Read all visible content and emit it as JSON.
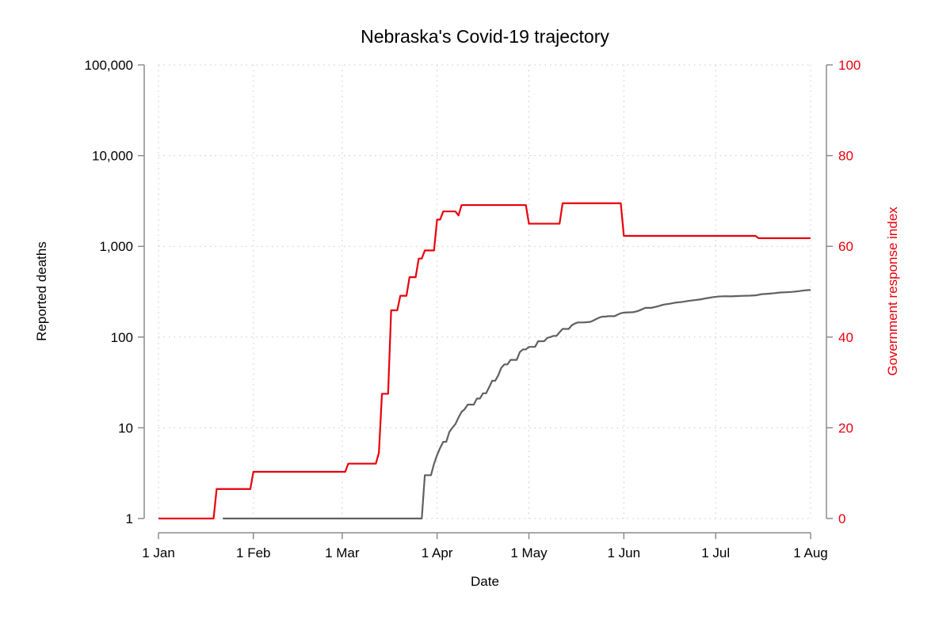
{
  "chart_data": {
    "type": "line",
    "title": "Nebraska's Covid-19 trajectory",
    "xlabel": "Date",
    "ylabel": "Reported deaths",
    "y2label": "Government response index",
    "x_ticks": [
      {
        "label": "1 Jan",
        "date": "2020-01-01"
      },
      {
        "label": "1 Feb",
        "date": "2020-02-01"
      },
      {
        "label": "1 Mar",
        "date": "2020-03-01"
      },
      {
        "label": "1 Apr",
        "date": "2020-04-01"
      },
      {
        "label": "1 May",
        "date": "2020-05-01"
      },
      {
        "label": "1 Jun",
        "date": "2020-06-01"
      },
      {
        "label": "1 Jul",
        "date": "2020-07-01"
      },
      {
        "label": "1 Aug",
        "date": "2020-08-01"
      }
    ],
    "xlim": [
      "2020-01-01",
      "2020-08-01"
    ],
    "y_scale": "log",
    "ylim": [
      1,
      100000
    ],
    "y_ticks": [
      {
        "label": "1",
        "value": 1
      },
      {
        "label": "10",
        "value": 10
      },
      {
        "label": "100",
        "value": 100
      },
      {
        "label": "1,000",
        "value": 1000
      },
      {
        "label": "10,000",
        "value": 10000
      },
      {
        "label": "100,000",
        "value": 100000
      }
    ],
    "y2lim": [
      0,
      100
    ],
    "y2_ticks": [
      {
        "label": "0",
        "value": 0
      },
      {
        "label": "20",
        "value": 20
      },
      {
        "label": "40",
        "value": 40
      },
      {
        "label": "60",
        "value": 60
      },
      {
        "label": "80",
        "value": 80
      },
      {
        "label": "100",
        "value": 100
      }
    ],
    "grid": true,
    "series": [
      {
        "key": "deaths",
        "axis": "left",
        "color": "#606060",
        "points": [
          [
            "2020-01-22",
            1
          ],
          [
            "2020-03-27",
            1
          ],
          [
            "2020-03-28",
            3
          ],
          [
            "2020-03-30",
            3
          ],
          [
            "2020-03-31",
            4
          ],
          [
            "2020-04-01",
            5
          ],
          [
            "2020-04-02",
            6
          ],
          [
            "2020-04-03",
            7
          ],
          [
            "2020-04-04",
            7
          ],
          [
            "2020-04-05",
            9
          ],
          [
            "2020-04-06",
            10
          ],
          [
            "2020-04-07",
            11
          ],
          [
            "2020-04-08",
            13
          ],
          [
            "2020-04-09",
            15
          ],
          [
            "2020-04-10",
            16
          ],
          [
            "2020-04-11",
            18
          ],
          [
            "2020-04-13",
            18
          ],
          [
            "2020-04-14",
            21
          ],
          [
            "2020-04-15",
            21
          ],
          [
            "2020-04-16",
            24
          ],
          [
            "2020-04-17",
            24
          ],
          [
            "2020-04-18",
            28
          ],
          [
            "2020-04-19",
            33
          ],
          [
            "2020-04-20",
            33
          ],
          [
            "2020-04-21",
            38
          ],
          [
            "2020-04-22",
            46
          ],
          [
            "2020-04-23",
            50
          ],
          [
            "2020-04-24",
            50
          ],
          [
            "2020-04-25",
            56
          ],
          [
            "2020-04-27",
            56
          ],
          [
            "2020-04-28",
            68
          ],
          [
            "2020-04-29",
            73
          ],
          [
            "2020-04-30",
            73
          ],
          [
            "2020-05-01",
            78
          ],
          [
            "2020-05-03",
            78
          ],
          [
            "2020-05-04",
            90
          ],
          [
            "2020-05-06",
            90
          ],
          [
            "2020-05-07",
            98
          ],
          [
            "2020-05-08",
            100
          ],
          [
            "2020-05-09",
            103
          ],
          [
            "2020-05-10",
            103
          ],
          [
            "2020-05-11",
            113
          ],
          [
            "2020-05-12",
            123
          ],
          [
            "2020-05-14",
            123
          ],
          [
            "2020-05-15",
            135
          ],
          [
            "2020-05-16",
            141
          ],
          [
            "2020-05-17",
            145
          ],
          [
            "2020-05-19",
            145
          ],
          [
            "2020-05-21",
            147
          ],
          [
            "2020-05-22",
            152
          ],
          [
            "2020-05-23",
            158
          ],
          [
            "2020-05-24",
            164
          ],
          [
            "2020-05-25",
            168
          ],
          [
            "2020-05-26",
            168
          ],
          [
            "2020-05-27",
            170
          ],
          [
            "2020-05-29",
            170
          ],
          [
            "2020-05-30",
            177
          ],
          [
            "2020-05-31",
            183
          ],
          [
            "2020-06-01",
            186
          ],
          [
            "2020-06-04",
            188
          ],
          [
            "2020-06-05",
            191
          ],
          [
            "2020-06-06",
            196
          ],
          [
            "2020-06-08",
            210
          ],
          [
            "2020-06-10",
            210
          ],
          [
            "2020-06-12",
            218
          ],
          [
            "2020-06-14",
            228
          ],
          [
            "2020-06-16",
            233
          ],
          [
            "2020-06-18",
            240
          ],
          [
            "2020-06-20",
            244
          ],
          [
            "2020-06-22",
            250
          ],
          [
            "2020-06-24",
            255
          ],
          [
            "2020-06-26",
            260
          ],
          [
            "2020-06-28",
            268
          ],
          [
            "2020-06-30",
            275
          ],
          [
            "2020-07-02",
            280
          ],
          [
            "2020-07-04",
            282
          ],
          [
            "2020-07-06",
            281
          ],
          [
            "2020-07-08",
            283
          ],
          [
            "2020-07-10",
            285
          ],
          [
            "2020-07-12",
            286
          ],
          [
            "2020-07-14",
            288
          ],
          [
            "2020-07-16",
            297
          ],
          [
            "2020-07-18",
            300
          ],
          [
            "2020-07-20",
            304
          ],
          [
            "2020-07-22",
            310
          ],
          [
            "2020-07-24",
            312
          ],
          [
            "2020-07-26",
            315
          ],
          [
            "2020-07-28",
            320
          ],
          [
            "2020-07-30",
            327
          ],
          [
            "2020-08-01",
            331
          ]
        ]
      },
      {
        "key": "response_index",
        "axis": "right",
        "color": "#e8000b",
        "points": [
          [
            "2020-01-01",
            0
          ],
          [
            "2020-01-19",
            0
          ],
          [
            "2020-01-20",
            6.5
          ],
          [
            "2020-01-31",
            6.5
          ],
          [
            "2020-02-01",
            10.3
          ],
          [
            "2020-03-02",
            10.3
          ],
          [
            "2020-03-03",
            12.1
          ],
          [
            "2020-03-12",
            12.1
          ],
          [
            "2020-03-13",
            14.5
          ],
          [
            "2020-03-14",
            27.5
          ],
          [
            "2020-03-16",
            27.5
          ],
          [
            "2020-03-17",
            45.9
          ],
          [
            "2020-03-19",
            45.9
          ],
          [
            "2020-03-20",
            49.1
          ],
          [
            "2020-03-22",
            49.1
          ],
          [
            "2020-03-23",
            53.2
          ],
          [
            "2020-03-25",
            53.2
          ],
          [
            "2020-03-26",
            57.3
          ],
          [
            "2020-03-27",
            57.3
          ],
          [
            "2020-03-28",
            59.1
          ],
          [
            "2020-03-31",
            59.1
          ],
          [
            "2020-04-01",
            65.9
          ],
          [
            "2020-04-02",
            65.9
          ],
          [
            "2020-04-03",
            67.7
          ],
          [
            "2020-04-07",
            67.7
          ],
          [
            "2020-04-08",
            66.8
          ],
          [
            "2020-04-09",
            69.1
          ],
          [
            "2020-04-30",
            69.1
          ],
          [
            "2020-05-01",
            65.0
          ],
          [
            "2020-05-11",
            65.0
          ],
          [
            "2020-05-12",
            69.5
          ],
          [
            "2020-05-31",
            69.5
          ],
          [
            "2020-06-01",
            62.3
          ],
          [
            "2020-07-14",
            62.3
          ],
          [
            "2020-07-15",
            61.8
          ],
          [
            "2020-08-01",
            61.8
          ]
        ]
      }
    ]
  }
}
